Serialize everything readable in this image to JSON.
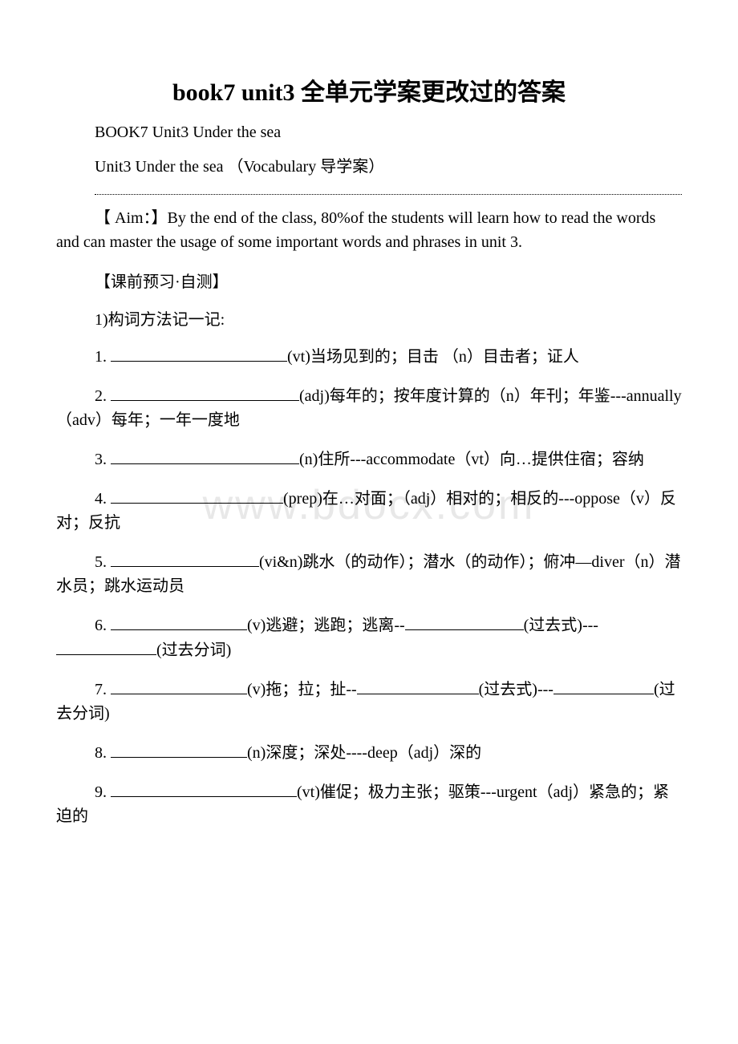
{
  "title": "book7 unit3 全单元学案更改过的答案",
  "subtitle1": "BOOK7 Unit3 Under the sea",
  "subtitle2": "Unit3  Under the sea （Vocabulary 导学案）",
  "aim": "【 Aim：】By the end of the class, 80%of the students will learn how to read the words and can master the usage of some important words and phrases in unit 3.",
  "section_header": "【课前预习·自测】",
  "sub_header": "1)构词方法记一记:",
  "items": [
    {
      "num": "1.",
      "blank_width": 220,
      "desc": "(vt)当场见到的；目击 （n）目击者；证人"
    },
    {
      "num": "2.",
      "blank_width": 235,
      "desc": "(adj)每年的；按年度计算的（n）年刊；年鉴---annually（adv）每年；一年一度地"
    },
    {
      "num": "3.",
      "blank_width": 235,
      "desc": "(n)住所---accommodate（vt）向…提供住宿；容纳"
    },
    {
      "num": "4.",
      "blank_width": 215,
      "desc": "(prep)在…对面；（adj）相对的；相反的---oppose（v）反对；反抗"
    },
    {
      "num": "5.",
      "blank_width": 185,
      "desc": "(vi&n)跳水（的动作）；潜水（的动作）；俯冲—diver（n）潜水员；跳水运动员"
    }
  ],
  "item6": {
    "num": "6.",
    "blank1_width": 170,
    "part1": "(v)逃避；逃跑；逃离--",
    "blank2_width": 148,
    "part2": "(过去式)---",
    "blank3_width": 125,
    "part3": "(过去分词)"
  },
  "item7": {
    "num": "7.",
    "blank1_width": 170,
    "part1": "(v)拖；拉；扯--",
    "blank2_width": 152,
    "part2": "(过去式)---",
    "blank3_width": 125,
    "part3": "(过去分词)"
  },
  "item8": {
    "num": "8.",
    "blank_width": 170,
    "desc": "(n)深度；深处----deep（adj）深的"
  },
  "item9": {
    "num": "9.",
    "blank_width": 232,
    "desc": "(vt)催促；极力主张；驱策---urgent（adj）紧急的；紧迫的"
  },
  "watermark": "www.bdocx.com",
  "colors": {
    "background": "#ffffff",
    "text": "#000000",
    "watermark": "#e8e8e8"
  },
  "typography": {
    "title_fontsize": 30,
    "body_fontsize": 20,
    "watermark_fontsize": 52,
    "line_height": 1.5
  }
}
